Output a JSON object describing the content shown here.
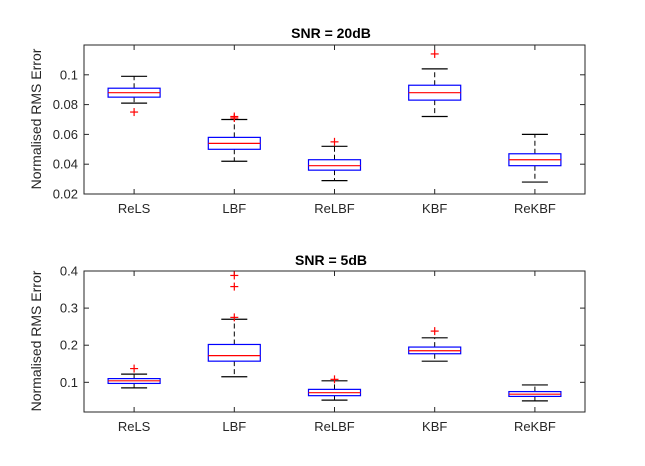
{
  "chart_data": [
    {
      "type": "box",
      "title": "SNR = 20dB",
      "xlabel": "",
      "ylabel": "Normalised RMS Error",
      "ylim": [
        0.02,
        0.12
      ],
      "yticks": [
        0.02,
        0.04,
        0.06,
        0.08,
        0.1
      ],
      "ytick_labels": [
        "0.02",
        "0.04",
        "0.06",
        "0.08",
        "0.1"
      ],
      "categories": [
        "ReLS",
        "LBF",
        "ReLBF",
        "KBF",
        "ReKBF"
      ],
      "boxes": [
        {
          "whisker_low": 0.081,
          "q1": 0.085,
          "median": 0.088,
          "q3": 0.091,
          "whisker_high": 0.099,
          "outliers": [
            0.075
          ]
        },
        {
          "whisker_low": 0.042,
          "q1": 0.05,
          "median": 0.054,
          "q3": 0.058,
          "whisker_high": 0.07,
          "outliers": [
            0.071,
            0.072
          ]
        },
        {
          "whisker_low": 0.029,
          "q1": 0.036,
          "median": 0.039,
          "q3": 0.043,
          "whisker_high": 0.052,
          "outliers": [
            0.055
          ]
        },
        {
          "whisker_low": 0.072,
          "q1": 0.083,
          "median": 0.088,
          "q3": 0.093,
          "whisker_high": 0.104,
          "outliers": [
            0.114
          ]
        },
        {
          "whisker_low": 0.028,
          "q1": 0.039,
          "median": 0.043,
          "q3": 0.047,
          "whisker_high": 0.06,
          "outliers": []
        }
      ],
      "colors": {
        "box": "#0000ff",
        "median": "#ff0000",
        "whisker": "#000000",
        "outlier": "#ff0000",
        "axis": "#262626"
      }
    },
    {
      "type": "box",
      "title": "SNR = 5dB",
      "xlabel": "",
      "ylabel": "Normalised RMS Error",
      "ylim": [
        0.02,
        0.4
      ],
      "yticks": [
        0.1,
        0.2,
        0.3,
        0.4
      ],
      "ytick_labels": [
        "0.1",
        "0.2",
        "0.3",
        "0.4"
      ],
      "categories": [
        "ReLS",
        "LBF",
        "ReLBF",
        "KBF",
        "ReKBF"
      ],
      "boxes": [
        {
          "whisker_low": 0.085,
          "q1": 0.097,
          "median": 0.104,
          "q3": 0.11,
          "whisker_high": 0.122,
          "outliers": [
            0.137
          ]
        },
        {
          "whisker_low": 0.115,
          "q1": 0.157,
          "median": 0.172,
          "q3": 0.202,
          "whisker_high": 0.27,
          "outliers": [
            0.275,
            0.358,
            0.388
          ]
        },
        {
          "whisker_low": 0.052,
          "q1": 0.064,
          "median": 0.072,
          "q3": 0.081,
          "whisker_high": 0.104,
          "outliers": [
            0.108
          ]
        },
        {
          "whisker_low": 0.157,
          "q1": 0.177,
          "median": 0.185,
          "q3": 0.195,
          "whisker_high": 0.22,
          "outliers": [
            0.238
          ]
        },
        {
          "whisker_low": 0.05,
          "q1": 0.062,
          "median": 0.068,
          "q3": 0.075,
          "whisker_high": 0.093,
          "outliers": []
        }
      ],
      "colors": {
        "box": "#0000ff",
        "median": "#ff0000",
        "whisker": "#000000",
        "outlier": "#ff0000",
        "axis": "#262626"
      }
    }
  ]
}
